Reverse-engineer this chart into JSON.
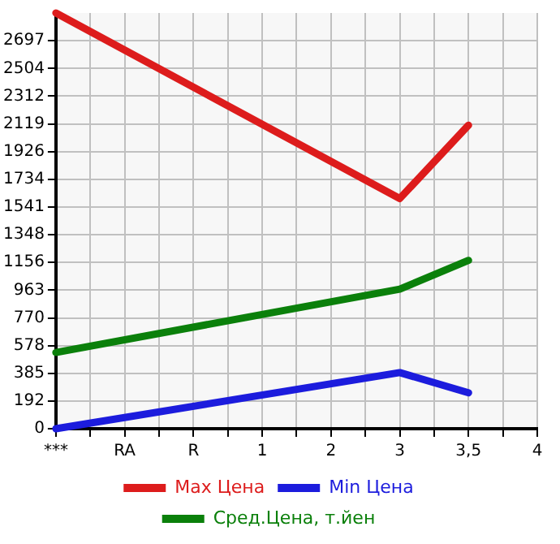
{
  "chart_data": {
    "type": "line",
    "categories": [
      "***",
      null,
      "RA",
      null,
      "R",
      null,
      "1",
      null,
      "2",
      null,
      "3",
      null,
      "3,5",
      null,
      "4"
    ],
    "series": [
      {
        "name": "Max Цена",
        "color": "#dd1c1c",
        "values": [
          2890,
          null,
          null,
          null,
          null,
          null,
          null,
          null,
          null,
          null,
          1600,
          null,
          2110,
          null,
          null
        ]
      },
      {
        "name": "Min Цена",
        "color": "#1c1cdd",
        "values": [
          0,
          null,
          null,
          null,
          null,
          null,
          null,
          null,
          null,
          null,
          390,
          null,
          250,
          null,
          null
        ]
      },
      {
        "name": "Сред.Цена, т.йен",
        "color": "#0b800b",
        "values": [
          530,
          null,
          null,
          null,
          null,
          null,
          null,
          null,
          null,
          null,
          970,
          null,
          1170,
          null,
          null
        ]
      }
    ],
    "ylim": [
      0,
      2890
    ],
    "yticks": [
      0,
      192,
      385,
      578,
      770,
      963,
      1156,
      1348,
      1541,
      1734,
      1926,
      2119,
      2312,
      2504,
      2697
    ],
    "grid": true,
    "legend": "bottom",
    "marker": "none",
    "line_style": "solid"
  }
}
